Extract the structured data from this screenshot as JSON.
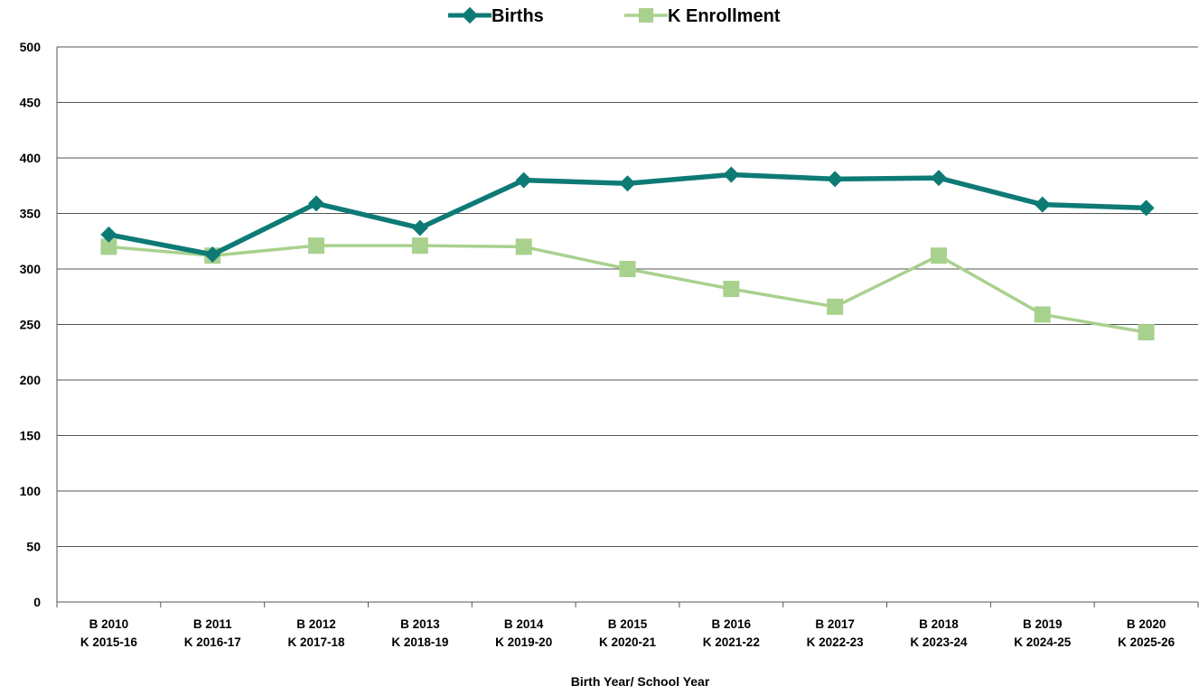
{
  "chart_data": {
    "type": "line",
    "title": "",
    "xlabel": "Birth Year/ School Year",
    "ylabel": "",
    "ylim": [
      0,
      500
    ],
    "yticks": [
      0,
      50,
      100,
      150,
      200,
      250,
      300,
      350,
      400,
      450,
      500
    ],
    "grid": true,
    "legend_position": "top",
    "categories": [
      [
        "B 2010",
        "K 2015-16"
      ],
      [
        "B 2011",
        "K 2016-17"
      ],
      [
        "B 2012",
        "K 2017-18"
      ],
      [
        "B 2013",
        "K 2018-19"
      ],
      [
        "B 2014",
        "K 2019-20"
      ],
      [
        "B 2015",
        "K 2020-21"
      ],
      [
        "B 2016",
        "K 2021-22"
      ],
      [
        "B 2017",
        "K 2022-23"
      ],
      [
        "B 2018",
        "K 2023-24"
      ],
      [
        "B 2019",
        "K 2024-25"
      ],
      [
        "B 2020",
        "K 2025-26"
      ]
    ],
    "series": [
      {
        "name": "Births",
        "color": "#0e7a76",
        "marker": "diamond",
        "values": [
          331,
          313,
          359,
          337,
          380,
          377,
          385,
          381,
          382,
          358,
          355
        ]
      },
      {
        "name": "K Enrollment",
        "color": "#a9d18e",
        "marker": "square",
        "values": [
          320,
          312,
          321,
          321,
          320,
          300,
          282,
          266,
          312,
          259,
          243
        ]
      }
    ]
  }
}
